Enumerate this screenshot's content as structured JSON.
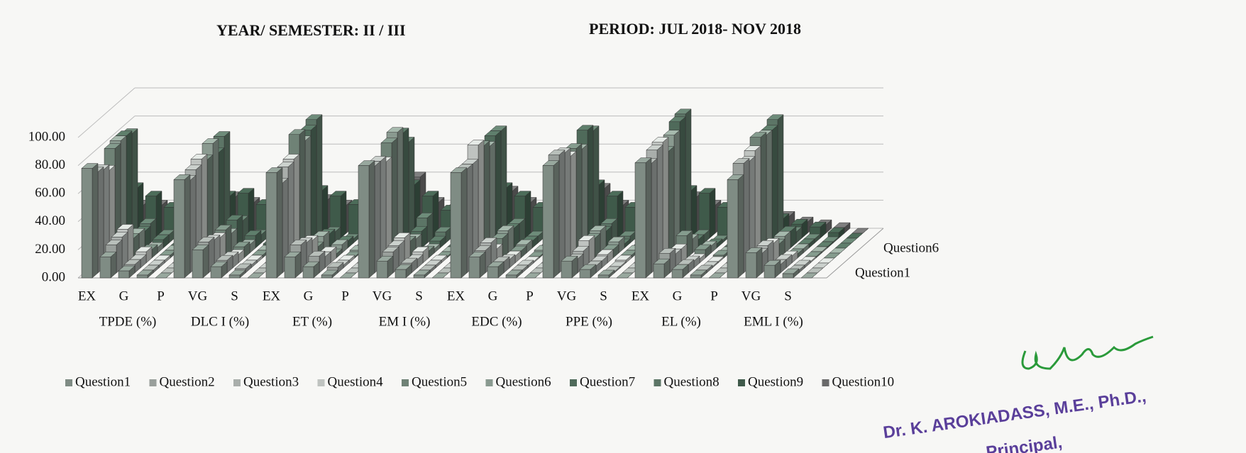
{
  "chart_data": {
    "type": "bar3d",
    "title": "YEAR/ SEMESTER: II / III",
    "subtitle": "PERIOD: JUL 2018- NOV 2018",
    "categories": [
      "EX",
      null,
      "G",
      null,
      "P",
      null,
      "VG",
      null,
      "S",
      null,
      "EX",
      null,
      "G",
      null,
      "P",
      null,
      "VG",
      null,
      "S",
      null,
      "EX",
      null,
      "G",
      null,
      "P",
      null,
      "VG",
      null,
      "S",
      null,
      "EX",
      null,
      "G",
      null,
      "P",
      null,
      "VG",
      null,
      "S",
      null
    ],
    "group_labels": [
      "TPDE (%)",
      "DLC I (%)",
      "ET (%)",
      "EM I (%)",
      "EDC (%)",
      "PPE (%)",
      "EL (%)",
      "EML I (%)"
    ],
    "ylim": [
      0,
      100
    ],
    "yticks": [
      {
        "value": 0,
        "label": "0.00"
      },
      {
        "value": 20,
        "label": "20.00"
      },
      {
        "value": 40,
        "label": "40.00"
      },
      {
        "value": 60,
        "label": "60.00"
      },
      {
        "value": 80,
        "label": "80.00"
      },
      {
        "value": 100,
        "label": "100.00"
      }
    ],
    "grid": true,
    "legend": "bottom",
    "series": [
      {
        "name": "Question1",
        "color": "#7f8c84",
        "values": [
          78,
          15,
          5,
          2,
          0,
          70,
          20,
          8,
          2,
          0,
          75,
          15,
          8,
          2,
          0,
          80,
          12,
          6,
          2,
          0,
          75,
          15,
          8,
          2,
          0,
          80,
          12,
          6,
          2,
          0,
          82,
          10,
          6,
          2,
          0,
          70,
          18,
          9,
          3,
          0
        ]
      },
      {
        "name": "Question2",
        "color": "#999f9b",
        "values": [
          72,
          20,
          6,
          2,
          0,
          66,
          22,
          9,
          3,
          0,
          64,
          20,
          12,
          4,
          0,
          76,
          15,
          7,
          2,
          0,
          74,
          16,
          8,
          2,
          0,
          84,
          10,
          5,
          1,
          0,
          78,
          14,
          6,
          2,
          0,
          78,
          14,
          6,
          2,
          0
        ]
      },
      {
        "name": "Question3",
        "color": "#a9aeab",
        "values": [
          70,
          22,
          6,
          2,
          0,
          70,
          20,
          8,
          2,
          0,
          72,
          18,
          8,
          2,
          0,
          76,
          16,
          6,
          2,
          0,
          74,
          18,
          6,
          2,
          0,
          82,
          12,
          5,
          1,
          0,
          84,
          10,
          5,
          1,
          0,
          76,
          16,
          6,
          2,
          0
        ]
      },
      {
        "name": "Question4",
        "color": "#bfc3c0",
        "values": [
          66,
          24,
          8,
          2,
          0,
          74,
          18,
          6,
          2,
          0,
          74,
          16,
          8,
          2,
          0,
          72,
          18,
          8,
          2,
          0,
          84,
          10,
          5,
          1,
          0,
          76,
          16,
          6,
          2,
          0,
          86,
          10,
          3,
          1,
          0,
          80,
          14,
          5,
          1,
          0
        ]
      },
      {
        "name": "Question5",
        "color": "#6f8276",
        "values": [
          78,
          14,
          6,
          2,
          0,
          70,
          20,
          8,
          2,
          0,
          88,
          8,
          3,
          1,
          0,
          82,
          12,
          5,
          1,
          0,
          80,
          14,
          5,
          1,
          0,
          78,
          14,
          6,
          2,
          0,
          76,
          16,
          6,
          2,
          0,
          86,
          10,
          3,
          1,
          0
        ]
      },
      {
        "name": "Question6",
        "color": "#8a9a90",
        "values": [
          80,
          14,
          4,
          2,
          0,
          78,
          14,
          6,
          2,
          0,
          80,
          12,
          6,
          2,
          0,
          86,
          10,
          3,
          1,
          0,
          76,
          16,
          6,
          2,
          0,
          74,
          16,
          8,
          2,
          0,
          84,
          10,
          5,
          1,
          0,
          84,
          12,
          3,
          1,
          0
        ]
      },
      {
        "name": "Question7",
        "color": "#4f6a5a",
        "values": [
          80,
          12,
          6,
          2,
          0,
          68,
          20,
          9,
          3,
          0,
          84,
          10,
          5,
          1,
          0,
          82,
          12,
          5,
          1,
          0,
          80,
          14,
          5,
          1,
          0,
          84,
          12,
          3,
          1,
          0,
          90,
          6,
          3,
          1,
          0,
          84,
          12,
          3,
          1,
          0
        ]
      },
      {
        "name": "Question8",
        "color": "#5c7566",
        "values": [
          78,
          14,
          6,
          2,
          0,
          76,
          16,
          6,
          2,
          0,
          88,
          8,
          3,
          1,
          0,
          72,
          18,
          8,
          2,
          0,
          80,
          14,
          5,
          1,
          0,
          80,
          14,
          5,
          1,
          0,
          92,
          6,
          2,
          0,
          0,
          88,
          8,
          3,
          1,
          0
        ]
      },
      {
        "name": "Question9",
        "color": "#3f5a4a",
        "values": [
          36,
          30,
          22,
          10,
          2,
          30,
          32,
          24,
          12,
          2,
          34,
          30,
          24,
          10,
          2,
          38,
          30,
          20,
          10,
          2,
          36,
          30,
          22,
          10,
          2,
          38,
          30,
          22,
          8,
          2,
          34,
          32,
          22,
          10,
          2,
          14,
          10,
          8,
          4,
          0
        ]
      },
      {
        "name": "Question10",
        "color": "#6a6a6a",
        "values": [
          20,
          20,
          18,
          8,
          2,
          26,
          22,
          18,
          10,
          2,
          24,
          20,
          18,
          8,
          2,
          40,
          22,
          18,
          8,
          2,
          30,
          22,
          18,
          8,
          2,
          32,
          20,
          18,
          8,
          2,
          26,
          20,
          18,
          8,
          2,
          12,
          8,
          6,
          4,
          0
        ]
      }
    ]
  },
  "stamp": {
    "name": "Dr. K. AROKIADASS, M.E., Ph.D.,",
    "role": "Principal,"
  }
}
